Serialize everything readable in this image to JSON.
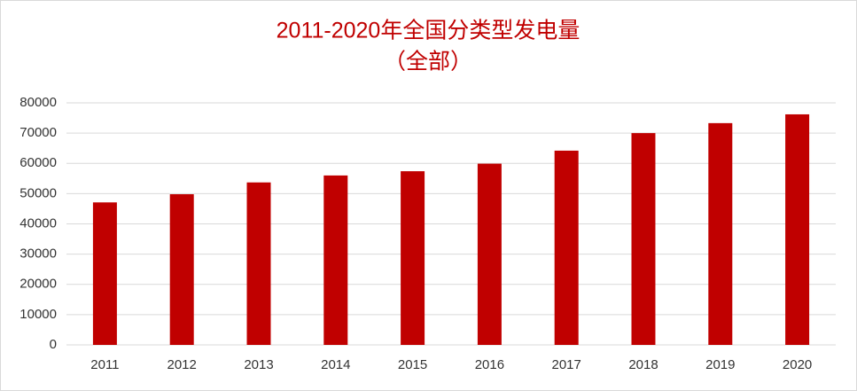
{
  "chart_data": {
    "type": "bar",
    "title": "2011-2020年全国分类型发电量",
    "subtitle": "（全部）",
    "categories": [
      "2011",
      "2012",
      "2013",
      "2014",
      "2015",
      "2016",
      "2017",
      "2018",
      "2019",
      "2020"
    ],
    "values": [
      47100,
      49800,
      53700,
      56000,
      57400,
      59900,
      64200,
      70000,
      73300,
      76200
    ],
    "color": "#c00000",
    "ylim": [
      0,
      80000
    ],
    "yticks": [
      0,
      10000,
      20000,
      30000,
      40000,
      50000,
      60000,
      70000,
      80000
    ],
    "grid": true
  }
}
